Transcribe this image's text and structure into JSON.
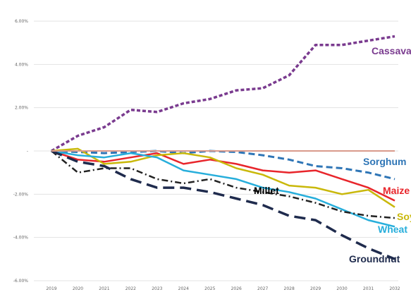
{
  "chart_data": {
    "type": "line",
    "x": [
      "2019",
      "2020",
      "2021",
      "2022",
      "2023",
      "2024",
      "2025",
      "2026",
      "2027",
      "2028",
      "2029",
      "2030",
      "2031",
      "2032"
    ],
    "ylim": [
      -6,
      6
    ],
    "y_ticks": [
      {
        "value": 6,
        "label": "6.00%"
      },
      {
        "value": 4,
        "label": "4.00%"
      },
      {
        "value": 2,
        "label": "2.00%"
      },
      {
        "value": 0,
        "label": "-"
      },
      {
        "value": -2,
        "label": "-2.00%"
      },
      {
        "value": -4,
        "label": "-4.00%"
      },
      {
        "value": -6,
        "label": "-6.00%"
      }
    ],
    "grid": "horizontal",
    "series": [
      {
        "name": "Cassava",
        "color": "#7a3b8f",
        "dash": "short-dash",
        "values": [
          0,
          0.7,
          1.1,
          1.9,
          1.8,
          2.2,
          2.4,
          2.8,
          2.9,
          3.5,
          4.9,
          4.9,
          5.1,
          5.3
        ]
      },
      {
        "name": "Sorghum",
        "color": "#2e75b6",
        "dash": "dash",
        "values": [
          0,
          -0.05,
          -0.1,
          -0.05,
          0.0,
          -0.1,
          0.0,
          -0.05,
          -0.2,
          -0.4,
          -0.7,
          -0.8,
          -1.0,
          -1.3
        ]
      },
      {
        "name": "Maize",
        "color": "#e8252b",
        "dash": "solid",
        "values": [
          0,
          -0.4,
          -0.5,
          -0.3,
          -0.1,
          -0.6,
          -0.4,
          -0.6,
          -0.9,
          -1.0,
          -0.9,
          -1.3,
          -1.7,
          -2.3
        ]
      },
      {
        "name": "Soy",
        "color": "#c9b80a",
        "dash": "solid",
        "values": [
          0,
          0.1,
          -0.6,
          -0.5,
          -0.2,
          -0.1,
          -0.3,
          -0.8,
          -1.1,
          -1.6,
          -1.7,
          -2.0,
          -1.8,
          -2.6
        ]
      },
      {
        "name": "Wheat",
        "color": "#27aedb",
        "dash": "solid",
        "values": [
          0,
          -0.2,
          -0.3,
          -0.1,
          -0.3,
          -0.9,
          -1.1,
          -1.3,
          -1.7,
          -1.9,
          -2.2,
          -2.7,
          -3.2,
          -3.5
        ]
      },
      {
        "name": "Millet",
        "color": "#222222",
        "dash": "dash-dot",
        "values": [
          0,
          -1.0,
          -0.8,
          -0.8,
          -1.3,
          -1.5,
          -1.3,
          -1.7,
          -1.9,
          -2.1,
          -2.4,
          -2.8,
          -3.0,
          -3.1
        ]
      },
      {
        "name": "Groundnut",
        "color": "#1f2b4d",
        "dash": "long-dash",
        "values": [
          0,
          -0.5,
          -0.7,
          -1.3,
          -1.7,
          -1.7,
          -1.9,
          -2.2,
          -2.5,
          -3.0,
          -3.2,
          -3.9,
          -4.5,
          -5.0
        ]
      },
      {
        "name": "",
        "color": "#d99a8c",
        "dash": "solid",
        "values": [
          0,
          0,
          0,
          0,
          0,
          0,
          0,
          0,
          0,
          0,
          0,
          0,
          0,
          0
        ]
      }
    ],
    "labels": [
      {
        "text": "Cassava",
        "series": "Cassava",
        "color": "#7a3b8f"
      },
      {
        "text": "Sorghum",
        "series": "Sorghum",
        "color": "#2e75b6"
      },
      {
        "text": "Millet",
        "series": "Millet",
        "color": "#000000"
      },
      {
        "text": "Maize",
        "series": "Maize",
        "color": "#e8252b"
      },
      {
        "text": "Soy",
        "series": "Soy",
        "color": "#c9b80a"
      },
      {
        "text": "Wheat",
        "series": "Wheat",
        "color": "#27aedb"
      },
      {
        "text": "Groundnut",
        "series": "Groundnut",
        "color": "#1f2b4d"
      }
    ]
  }
}
